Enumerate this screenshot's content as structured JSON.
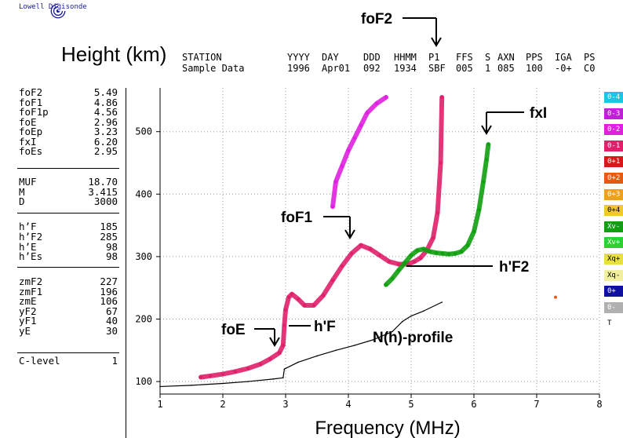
{
  "app": {
    "logo_text": "Lowell Digisonde"
  },
  "header": {
    "height_title": "Height (km)",
    "columns": [
      {
        "label": "STATION",
        "value": "Sample Data"
      },
      {
        "label": "YYYY",
        "value": "1996"
      },
      {
        "label": "DAY",
        "value": "Apr01"
      },
      {
        "label": "DDD",
        "value": "092"
      },
      {
        "label": "HHMM",
        "value": "1934"
      },
      {
        "label": "P1",
        "value": "SBF"
      },
      {
        "label": "FFS",
        "value": "005"
      },
      {
        "label": "S",
        "value": "1"
      },
      {
        "label": "AXN",
        "value": "085"
      },
      {
        "label": "PPS",
        "value": "100"
      },
      {
        "label": "IGA",
        "value": "-0+"
      },
      {
        "label": "PS",
        "value": "C0"
      }
    ]
  },
  "params": [
    {
      "label": "foF2",
      "value": "5.49"
    },
    {
      "label": "foF1",
      "value": "4.86"
    },
    {
      "label": "foF1p",
      "value": "4.56"
    },
    {
      "label": "foE",
      "value": "2.96"
    },
    {
      "label": "foEp",
      "value": "3.23"
    },
    {
      "label": "fxI",
      "value": "6.20"
    },
    {
      "label": "foEs",
      "value": "2.95"
    },
    {
      "label": "MUF",
      "value": "18.70"
    },
    {
      "label": "M",
      "value": "3.415"
    },
    {
      "label": "D",
      "value": "3000"
    },
    {
      "label": "h’F",
      "value": "185"
    },
    {
      "label": "h’F2",
      "value": "285"
    },
    {
      "label": "h’E",
      "value": "98"
    },
    {
      "label": "h’Es",
      "value": "98"
    },
    {
      "label": "zmF2",
      "value": "227"
    },
    {
      "label": "zmF1",
      "value": "196"
    },
    {
      "label": "zmE",
      "value": "106"
    },
    {
      "label": "yF2",
      "value": "67"
    },
    {
      "label": "yF1",
      "value": "40"
    },
    {
      "label": "yE",
      "value": "30"
    },
    {
      "label": "C-level",
      "value": "1"
    }
  ],
  "legend": [
    {
      "label": "0-4",
      "color": "#1ec3e8"
    },
    {
      "label": "0-3",
      "color": "#c020d8"
    },
    {
      "label": "0-2",
      "color": "#e020e0"
    },
    {
      "label": "0-1",
      "color": "#e0206a"
    },
    {
      "label": "0+1",
      "color": "#d81818"
    },
    {
      "label": "0+2",
      "color": "#e85a10"
    },
    {
      "label": "0+3",
      "color": "#f0a020"
    },
    {
      "label": "0+4",
      "color": "#f0c830"
    },
    {
      "label": "Xv-",
      "color": "#10a010"
    },
    {
      "label": "Xv+",
      "color": "#30d030"
    },
    {
      "label": "Xq+",
      "color": "#e8e040"
    },
    {
      "label": "Xq-",
      "color": "#f0f0a0"
    },
    {
      "label": "0+",
      "color": "#1010a0"
    },
    {
      "label": "0-",
      "color": "#b0b0b0"
    },
    {
      "label": "T",
      "color": "#ffffff"
    }
  ],
  "annotations": {
    "foF2": "foF2",
    "fxI": "fxI",
    "foF1": "foF1",
    "hF2": "h'F2",
    "foE": "foE",
    "hF": "h'F",
    "profile": "N(h)-profile"
  },
  "chart_data": {
    "type": "scatter",
    "title": "",
    "xlabel": "Frequency (MHz)",
    "ylabel": "Height (km)",
    "xlim": [
      1,
      8
    ],
    "ylim": [
      80,
      570
    ],
    "x_ticks": [
      1,
      2,
      3,
      4,
      5,
      6,
      7,
      8
    ],
    "y_ticks": [
      100,
      200,
      300,
      400,
      500
    ],
    "grid": true,
    "series": [
      {
        "name": "0-1",
        "color": "#e0206a",
        "points": [
          [
            1.65,
            107
          ],
          [
            1.8,
            109
          ],
          [
            2.0,
            112
          ],
          [
            2.2,
            116
          ],
          [
            2.4,
            121
          ],
          [
            2.6,
            128
          ],
          [
            2.75,
            136
          ],
          [
            2.9,
            146
          ],
          [
            2.96,
            158
          ],
          [
            2.98,
            190
          ],
          [
            3.0,
            215
          ],
          [
            3.05,
            235
          ],
          [
            3.1,
            240
          ],
          [
            3.2,
            232
          ],
          [
            3.3,
            222
          ],
          [
            3.45,
            222
          ],
          [
            3.6,
            238
          ],
          [
            3.75,
            262
          ],
          [
            3.9,
            285
          ],
          [
            4.05,
            305
          ],
          [
            4.2,
            318
          ],
          [
            4.35,
            312
          ],
          [
            4.5,
            302
          ],
          [
            4.65,
            292
          ],
          [
            4.8,
            288
          ],
          [
            4.95,
            288
          ],
          [
            5.05,
            292
          ],
          [
            5.15,
            298
          ],
          [
            5.25,
            310
          ],
          [
            5.35,
            330
          ],
          [
            5.42,
            370
          ],
          [
            5.47,
            450
          ],
          [
            5.49,
            555
          ]
        ]
      },
      {
        "name": "0-2",
        "color": "#e020e0",
        "points": [
          [
            3.75,
            380
          ],
          [
            3.8,
            420
          ],
          [
            3.9,
            445
          ],
          [
            4.0,
            470
          ],
          [
            4.1,
            490
          ],
          [
            4.2,
            510
          ],
          [
            4.3,
            530
          ],
          [
            4.45,
            545
          ],
          [
            4.6,
            555
          ]
        ]
      },
      {
        "name": "Xv-",
        "color": "#10a010",
        "points": [
          [
            4.6,
            255
          ],
          [
            4.7,
            265
          ],
          [
            4.8,
            278
          ],
          [
            4.9,
            290
          ],
          [
            5.0,
            302
          ],
          [
            5.1,
            310
          ],
          [
            5.2,
            312
          ],
          [
            5.3,
            308
          ],
          [
            5.4,
            306
          ],
          [
            5.5,
            305
          ],
          [
            5.6,
            304
          ],
          [
            5.7,
            305
          ],
          [
            5.8,
            308
          ],
          [
            5.9,
            318
          ],
          [
            6.0,
            340
          ],
          [
            6.08,
            375
          ],
          [
            6.15,
            420
          ],
          [
            6.2,
            455
          ],
          [
            6.23,
            480
          ]
        ]
      },
      {
        "name": "N(h)-profile",
        "color": "#000000",
        "points": [
          [
            1.0,
            92
          ],
          [
            1.5,
            94
          ],
          [
            2.0,
            97
          ],
          [
            2.4,
            100
          ],
          [
            2.8,
            104
          ],
          [
            2.96,
            106
          ],
          [
            2.98,
            120
          ],
          [
            3.2,
            131
          ],
          [
            3.5,
            141
          ],
          [
            3.8,
            150
          ],
          [
            4.1,
            158
          ],
          [
            4.4,
            167
          ],
          [
            4.7,
            180
          ],
          [
            4.86,
            196
          ],
          [
            5.0,
            205
          ],
          [
            5.2,
            213
          ],
          [
            5.49,
            227
          ]
        ]
      }
    ]
  }
}
